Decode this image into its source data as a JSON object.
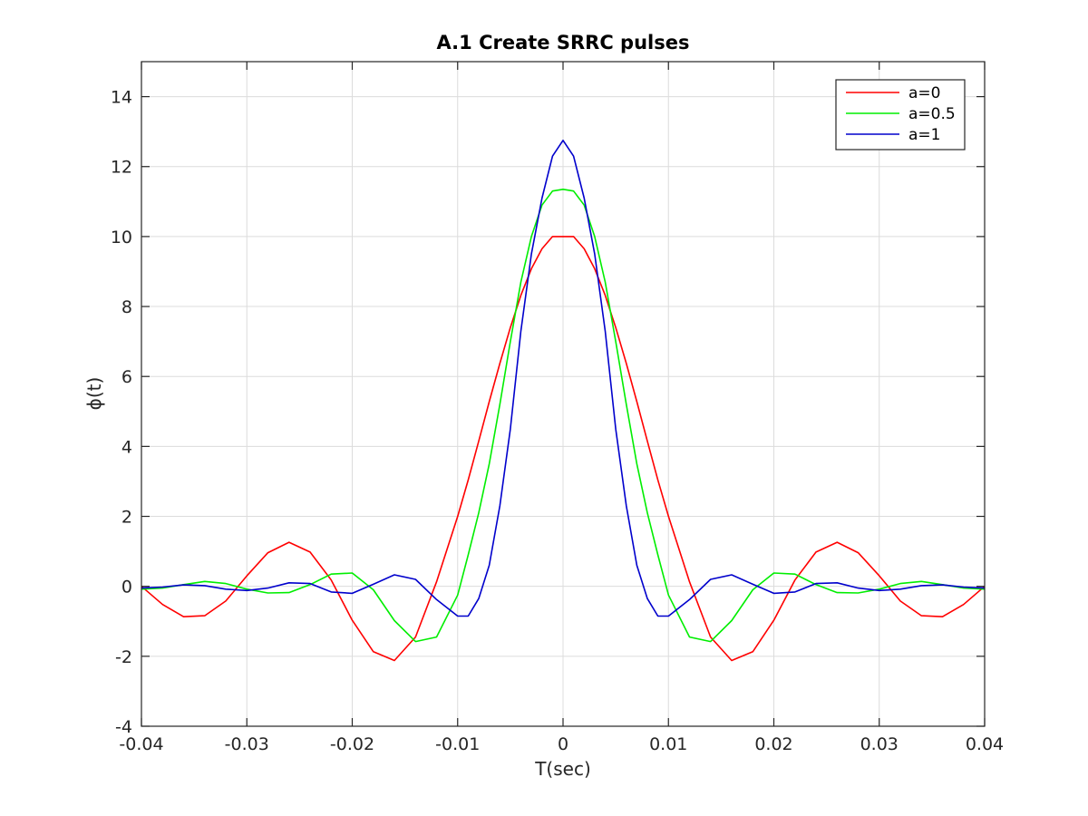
{
  "chart_data": {
    "type": "line",
    "title": "A.1 Create SRRC pulses",
    "xlabel": "T(sec)",
    "ylabel": "ϕ(t)",
    "xlim": [
      -0.04,
      0.04
    ],
    "ylim": [
      -4,
      15
    ],
    "xticks": [
      -0.04,
      -0.03,
      -0.02,
      -0.01,
      0,
      0.01,
      0.02,
      0.03,
      0.04
    ],
    "xtick_labels": [
      "-0.04",
      "-0.03",
      "-0.02",
      "-0.01",
      "0",
      "0.01",
      "0.02",
      "0.03",
      "0.04"
    ],
    "yticks": [
      -4,
      -2,
      0,
      2,
      4,
      6,
      8,
      10,
      12,
      14
    ],
    "ytick_labels": [
      "-4",
      "-2",
      "0",
      "2",
      "4",
      "6",
      "8",
      "10",
      "12",
      "14"
    ],
    "grid": true,
    "legend_position": "top-right",
    "x": [
      -0.04,
      -0.038,
      -0.036,
      -0.034,
      -0.032,
      -0.03,
      -0.028,
      -0.026,
      -0.024,
      -0.022,
      -0.02,
      -0.018,
      -0.016,
      -0.014,
      -0.012,
      -0.01,
      -0.009,
      -0.008,
      -0.007,
      -0.006,
      -0.005,
      -0.004,
      -0.003,
      -0.002,
      -0.001,
      0,
      0.001,
      0.002,
      0.003,
      0.004,
      0.005,
      0.006,
      0.007,
      0.008,
      0.009,
      0.01,
      0.012,
      0.014,
      0.016,
      0.018,
      0.02,
      0.022,
      0.024,
      0.026,
      0.028,
      0.03,
      0.032,
      0.034,
      0.036,
      0.038,
      0.04
    ],
    "series": [
      {
        "name": "a=0",
        "color": "#ff0000",
        "values": [
          0.0,
          -0.52,
          -0.87,
          -0.84,
          -0.42,
          0.3,
          0.96,
          1.26,
          0.98,
          0.18,
          -0.97,
          -1.87,
          -2.12,
          -1.45,
          0.13,
          2.0,
          3.04,
          4.15,
          5.28,
          6.37,
          7.4,
          8.32,
          9.08,
          9.65,
          10.0,
          10.0,
          10.0,
          9.65,
          9.08,
          8.32,
          7.4,
          6.37,
          5.28,
          4.15,
          3.04,
          2.0,
          0.13,
          -1.45,
          -2.12,
          -1.87,
          -0.97,
          0.18,
          0.98,
          1.26,
          0.96,
          0.3,
          -0.42,
          -0.84,
          -0.87,
          -0.52,
          0.0
        ]
      },
      {
        "name": "a=0.5",
        "color": "#00ee00",
        "values": [
          -0.08,
          -0.05,
          0.05,
          0.14,
          0.08,
          -0.08,
          -0.19,
          -0.18,
          0.05,
          0.35,
          0.38,
          -0.1,
          -0.98,
          -1.58,
          -1.45,
          -0.25,
          0.9,
          2.1,
          3.5,
          5.2,
          7.0,
          8.7,
          10.0,
          10.9,
          11.3,
          11.35,
          11.3,
          10.9,
          10.0,
          8.7,
          7.0,
          5.2,
          3.5,
          2.1,
          0.9,
          -0.25,
          -1.45,
          -1.58,
          -0.98,
          -0.1,
          0.38,
          0.35,
          0.05,
          -0.18,
          -0.19,
          -0.08,
          0.08,
          0.14,
          0.05,
          -0.05,
          -0.08
        ]
      },
      {
        "name": "a=1",
        "color": "#0000cc",
        "values": [
          -0.05,
          -0.02,
          0.04,
          0.02,
          -0.08,
          -0.12,
          -0.05,
          0.1,
          0.08,
          -0.16,
          -0.2,
          0.06,
          0.33,
          0.2,
          -0.38,
          -0.85,
          -0.85,
          -0.35,
          0.6,
          2.3,
          4.5,
          7.3,
          9.5,
          11.1,
          12.3,
          12.75,
          12.3,
          11.1,
          9.5,
          7.3,
          4.5,
          2.3,
          0.6,
          -0.35,
          -0.85,
          -0.85,
          -0.38,
          0.2,
          0.33,
          0.06,
          -0.2,
          -0.16,
          0.08,
          0.1,
          -0.05,
          -0.12,
          -0.08,
          0.02,
          0.04,
          -0.02,
          -0.05
        ]
      }
    ]
  }
}
